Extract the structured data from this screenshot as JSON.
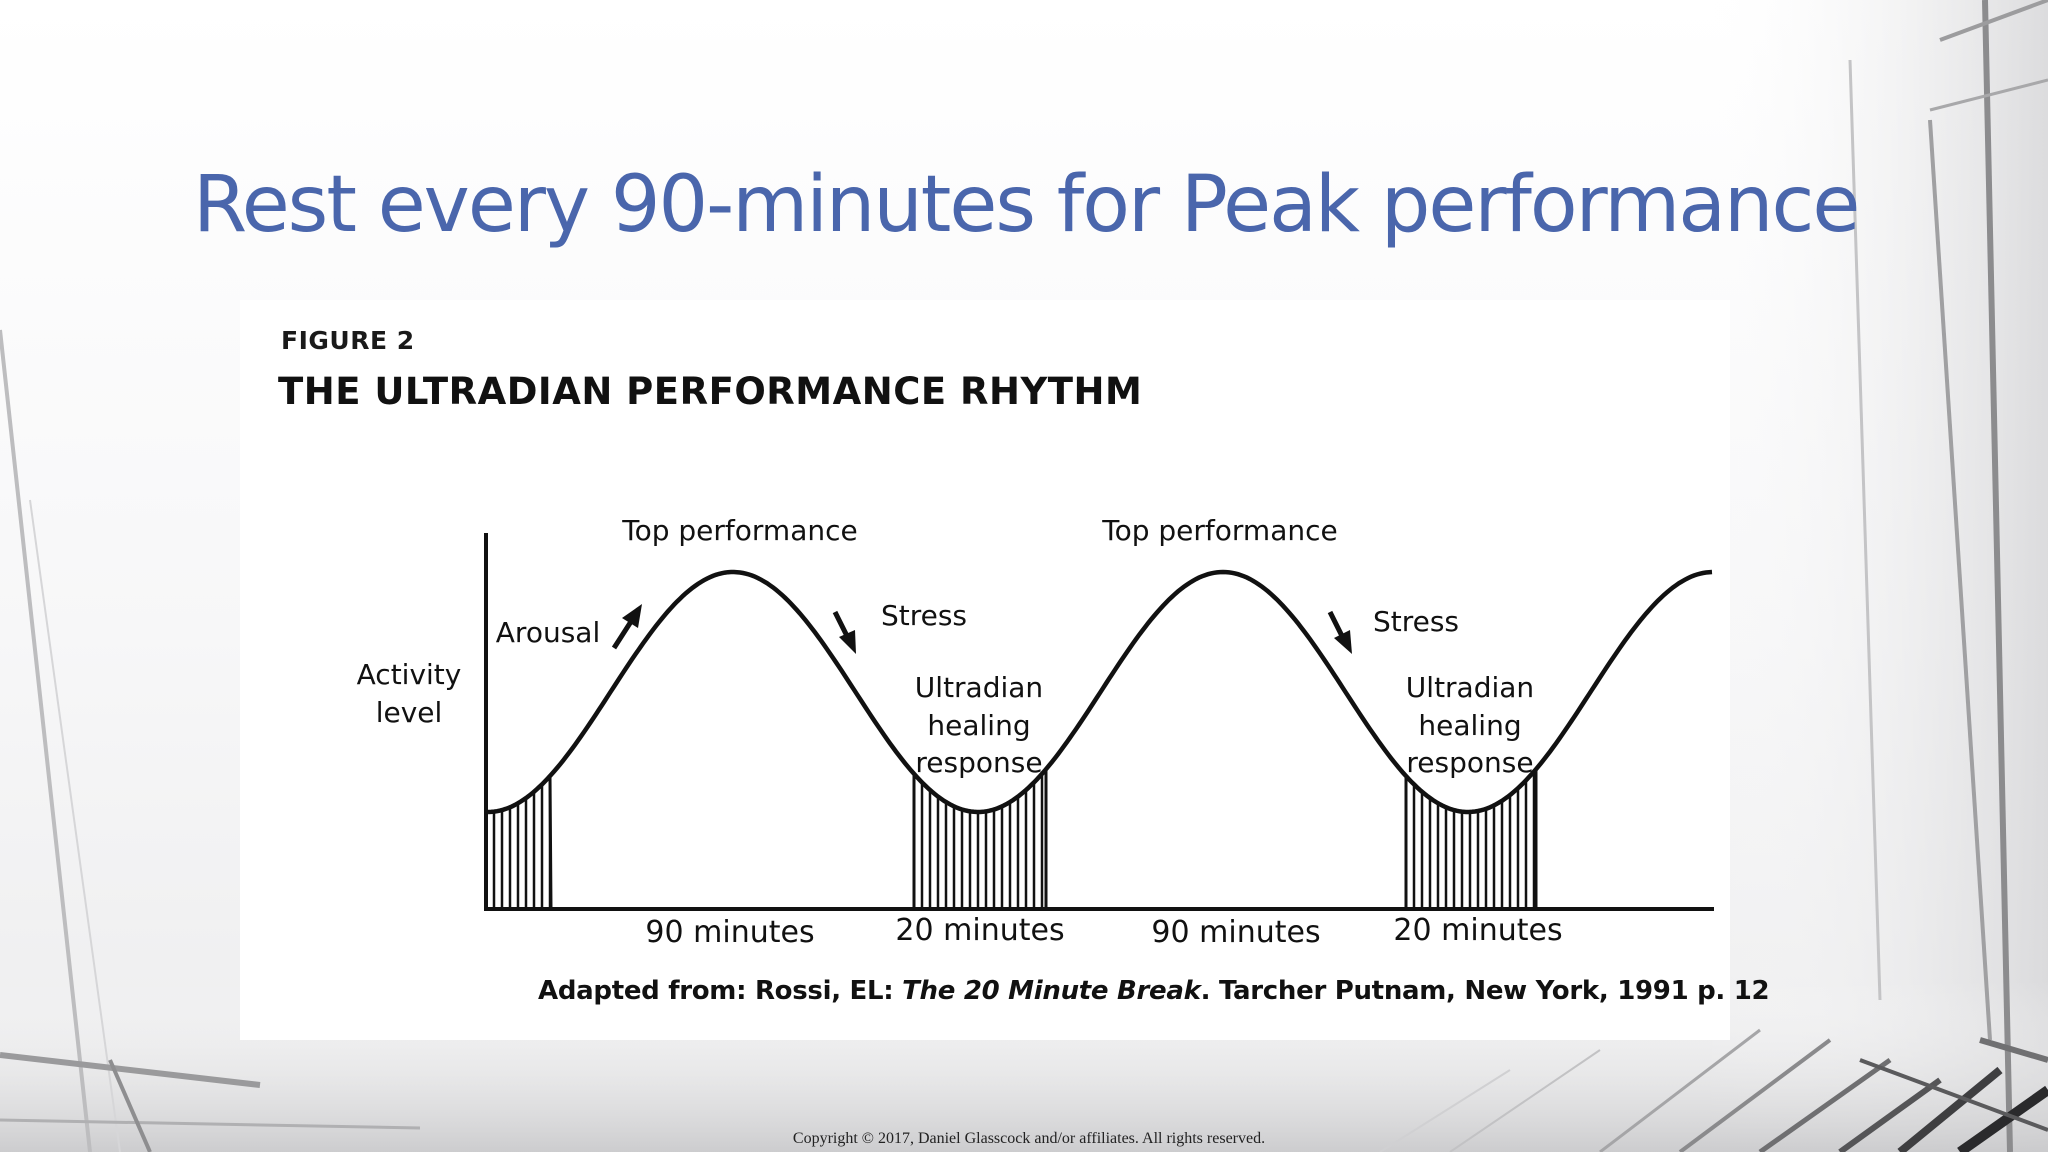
{
  "slide": {
    "title": "Rest every 90-minutes for Peak performance",
    "title_color": "#4a66ac",
    "copyright": "Copyright © 2017, Daniel Glasscock and/or affiliates.  All rights reserved."
  },
  "figure": {
    "label": "FIGURE 2",
    "title": "THE ULTRADIAN PERFORMANCE RHYTHM",
    "y_axis_label_line1": "Activity",
    "y_axis_label_line2": "level",
    "annotations": {
      "top_performance_1": "Top performance",
      "top_performance_2": "Top performance",
      "arousal": "Arousal",
      "stress_1": "Stress",
      "stress_2": "Stress",
      "healing_1": [
        "Ultradian",
        "healing",
        "response"
      ],
      "healing_2": [
        "Ultradian",
        "healing",
        "response"
      ]
    },
    "intervals": [
      "90 minutes",
      "20 minutes",
      "90 minutes",
      "20 minutes"
    ],
    "citation": {
      "prefix": "Adapted from: Rossi, EL: ",
      "book_title": "The 20 Minute Break",
      "suffix": ". Tarcher Putnam, New York, 1991 p. 12"
    }
  }
}
